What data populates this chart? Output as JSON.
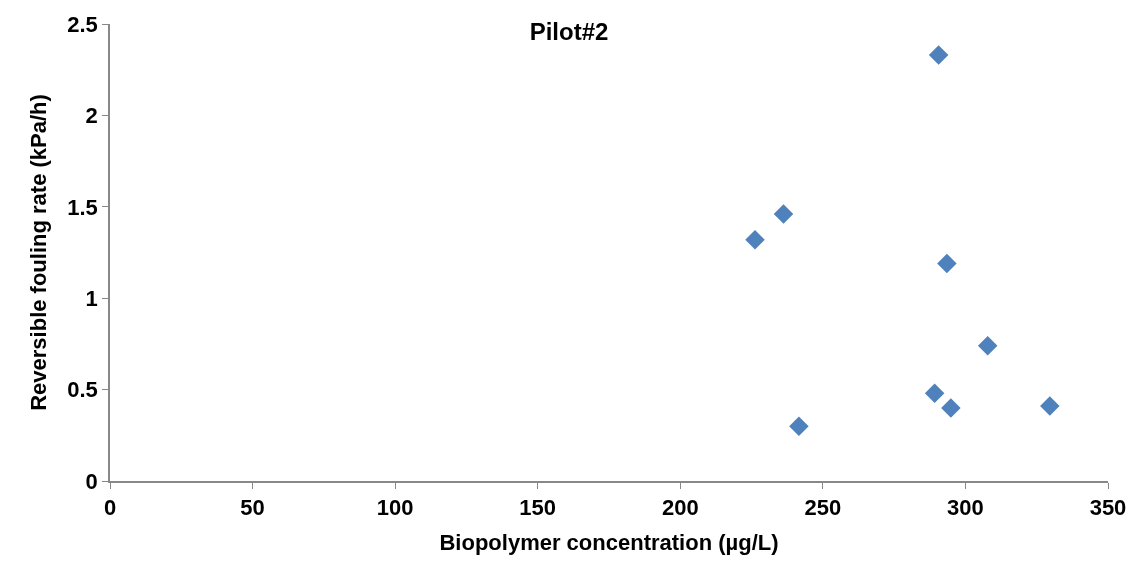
{
  "chart_data": {
    "type": "scatter",
    "title": "Pilot#2",
    "xlabel": "Biopolymer concentration (µg/L)",
    "ylabel": "Reversible fouling rate (kPa/h)",
    "x": [
      290.6,
      226.2,
      236.2,
      293.5,
      307.8,
      289.2,
      294.9,
      329.6,
      241.6
    ],
    "series": [
      {
        "color": "#4f81bd",
        "values": [
          2.33,
          1.32,
          1.46,
          1.19,
          0.74,
          0.48,
          0.4,
          0.41,
          0.3
        ]
      }
    ],
    "xlim": [
      0,
      350
    ],
    "xticks": [
      0,
      50,
      100,
      150,
      200,
      250,
      300,
      350
    ],
    "ylim": [
      0,
      2.5
    ],
    "yticks": [
      0,
      0.5,
      1,
      1.5,
      2,
      2.5
    ],
    "marker": "diamond"
  }
}
